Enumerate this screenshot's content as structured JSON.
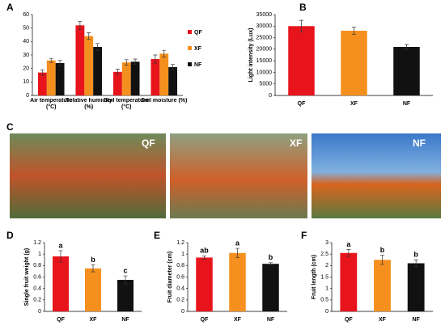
{
  "chart_data": [
    {
      "type": "grouped-bar",
      "panel": "A",
      "categories": [
        "Air temperature (°C)",
        "Relative humidity (%)",
        "Soil temperature (°C)",
        "Soil moisture (%)"
      ],
      "series": [
        {
          "name": "QF",
          "color": "#e8141c",
          "values": [
            17,
            52,
            17.5,
            27
          ],
          "errors": [
            2,
            3,
            2,
            3
          ]
        },
        {
          "name": "XF",
          "color": "#f5901e",
          "values": [
            26,
            44,
            24.5,
            31
          ],
          "errors": [
            1.5,
            2.5,
            2,
            2.5
          ]
        },
        {
          "name": "NF",
          "color": "#111111",
          "values": [
            24,
            36,
            25,
            21
          ],
          "errors": [
            2,
            2.5,
            2,
            2
          ]
        }
      ],
      "ylim": [
        0,
        60
      ],
      "yticks": [
        0,
        10,
        20,
        30,
        40,
        50,
        60
      ],
      "legend": "right"
    },
    {
      "type": "bar",
      "panel": "B",
      "y_label": "Light intensity (Lux)",
      "categories": [
        "QF",
        "XF",
        "NF"
      ],
      "values": [
        30000,
        28000,
        21000
      ],
      "errors": [
        2500,
        1500,
        1000
      ],
      "colors": [
        "#e8141c",
        "#f5901e",
        "#111111"
      ],
      "ylim": [
        0,
        35000
      ],
      "yticks": [
        0,
        5000,
        10000,
        15000,
        20000,
        25000,
        30000,
        35000
      ]
    },
    {
      "type": "bar",
      "panel": "D",
      "y_label": "Single fruit weight (g)",
      "categories": [
        "QF",
        "XF",
        "NF"
      ],
      "values": [
        0.96,
        0.75,
        0.55
      ],
      "errors": [
        0.1,
        0.06,
        0.07
      ],
      "annotations": [
        "a",
        "b",
        "c"
      ],
      "colors": [
        "#e8141c",
        "#f5901e",
        "#111111"
      ],
      "ylim": [
        0,
        1.2
      ],
      "yticks": [
        0,
        0.2,
        0.4,
        0.6,
        0.8,
        1,
        1.2
      ]
    },
    {
      "type": "bar",
      "panel": "E",
      "y_label": "Fruit diameter (cm)",
      "categories": [
        "QF",
        "XF",
        "NF"
      ],
      "values": [
        0.94,
        1.02,
        0.83
      ],
      "errors": [
        0.03,
        0.08,
        0.02
      ],
      "annotations": [
        "ab",
        "a",
        "b"
      ],
      "colors": [
        "#e8141c",
        "#f5901e",
        "#111111"
      ],
      "ylim": [
        0,
        1.2
      ],
      "yticks": [
        0,
        0.2,
        0.4,
        0.6,
        0.8,
        1,
        1.2
      ]
    },
    {
      "type": "bar",
      "panel": "F",
      "y_label": "Fruit length (cm)",
      "categories": [
        "QF",
        "XF",
        "NF"
      ],
      "values": [
        2.55,
        2.25,
        2.1
      ],
      "errors": [
        0.15,
        0.2,
        0.15
      ],
      "annotations": [
        "a",
        "b",
        "b"
      ],
      "colors": [
        "#e8141c",
        "#f5901e",
        "#111111"
      ],
      "ylim": [
        0,
        3
      ],
      "yticks": [
        0,
        0.5,
        1,
        1.5,
        2,
        2.5,
        3
      ]
    }
  ],
  "photos": {
    "panel": "C",
    "labels": [
      "QF",
      "XF",
      "NF"
    ]
  }
}
